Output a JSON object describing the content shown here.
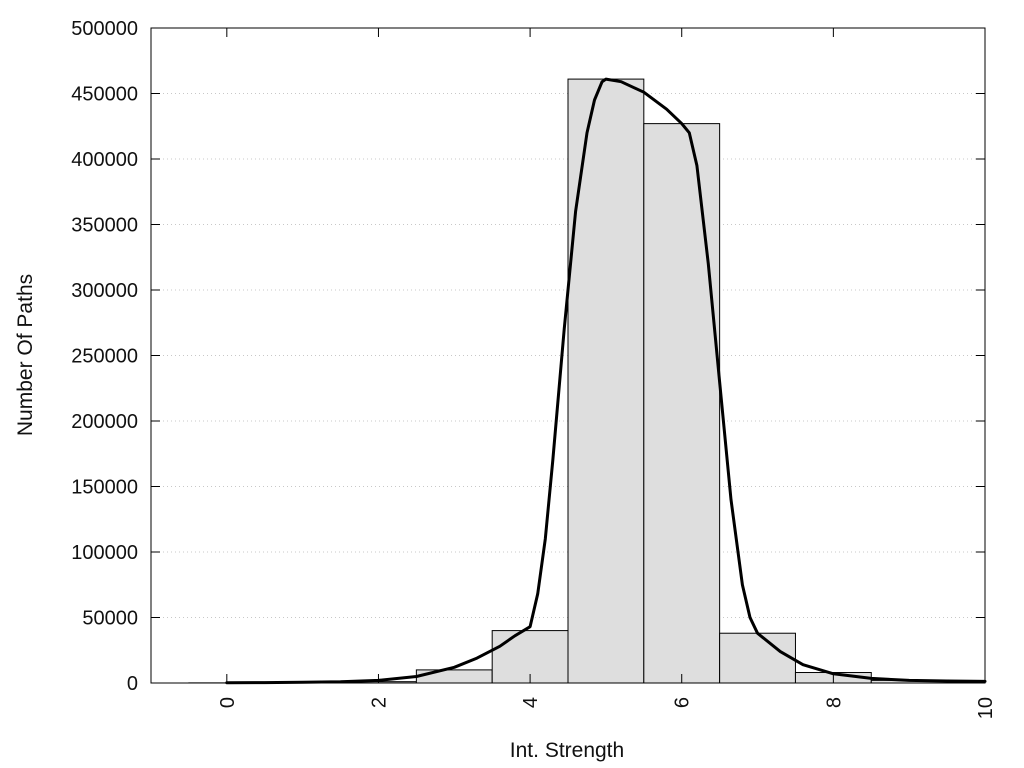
{
  "chart_data": {
    "type": "bar",
    "xlabel": "Int. Strength",
    "ylabel": "Number Of Paths",
    "xlim": [
      -1,
      10
    ],
    "ylim": [
      0,
      500000
    ],
    "x_ticks": [
      0,
      2,
      4,
      6,
      8,
      10
    ],
    "x_tick_labels": [
      "0",
      "2",
      "4",
      "6",
      "8",
      "10"
    ],
    "y_ticks": [
      0,
      50000,
      100000,
      150000,
      200000,
      250000,
      300000,
      350000,
      400000,
      450000,
      500000
    ],
    "y_tick_labels": [
      "0",
      "50000",
      "100000",
      "150000",
      "200000",
      "250000",
      "300000",
      "350000",
      "400000",
      "450000",
      "500000"
    ],
    "grid": "horizontal-dotted",
    "bar_width": 1,
    "bars": {
      "x": [
        0,
        1,
        2,
        3,
        4,
        5,
        6,
        7,
        8,
        9,
        10
      ],
      "values": [
        100,
        300,
        1000,
        10000,
        40000,
        461000,
        427000,
        38000,
        8000,
        2000,
        1000
      ],
      "color": "#dedede",
      "edge_color": "#000000"
    },
    "curve": {
      "x": [
        0,
        0.5,
        1,
        1.5,
        2,
        2.5,
        3,
        3.3,
        3.6,
        3.8,
        4,
        4.1,
        4.2,
        4.3,
        4.45,
        4.6,
        4.75,
        4.85,
        4.95,
        5,
        5.2,
        5.5,
        5.8,
        6,
        6.1,
        6.2,
        6.35,
        6.5,
        6.65,
        6.8,
        6.9,
        7,
        7.3,
        7.6,
        8,
        8.5,
        9,
        9.5,
        10
      ],
      "y": [
        200,
        300,
        500,
        900,
        2000,
        5000,
        12000,
        19000,
        28000,
        36000,
        43000,
        68000,
        110000,
        170000,
        270000,
        360000,
        420000,
        445000,
        459000,
        461000,
        459000,
        451000,
        438000,
        427000,
        420000,
        395000,
        320000,
        230000,
        140000,
        75000,
        50000,
        38000,
        24000,
        14000,
        7000,
        3500,
        2000,
        1500,
        1200
      ],
      "color": "#000000"
    }
  }
}
